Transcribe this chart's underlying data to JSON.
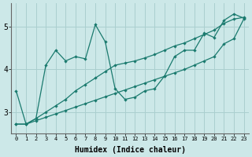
{
  "xlabel": "Humidex (Indice chaleur)",
  "bg_color": "#cce8e8",
  "grid_color": "#aacfcf",
  "line_color": "#1a7a6e",
  "xlim": [
    -0.5,
    23.5
  ],
  "ylim": [
    2.5,
    5.55
  ],
  "x_ticks": [
    0,
    1,
    2,
    3,
    4,
    5,
    6,
    7,
    8,
    9,
    10,
    11,
    12,
    13,
    14,
    15,
    16,
    17,
    18,
    19,
    20,
    21,
    22,
    23
  ],
  "y_ticks": [
    3,
    4,
    5
  ],
  "hours": [
    0,
    1,
    2,
    3,
    4,
    5,
    6,
    7,
    8,
    9,
    10,
    11,
    12,
    13,
    14,
    15,
    16,
    17,
    18,
    19,
    20,
    21,
    22,
    23
  ],
  "jagged_line": [
    3.5,
    2.72,
    2.85,
    4.1,
    4.45,
    4.2,
    4.3,
    4.25,
    5.05,
    4.65,
    3.55,
    3.3,
    3.35,
    3.5,
    3.55,
    3.85,
    4.3,
    4.45,
    4.45,
    4.85,
    4.75,
    5.15,
    5.3,
    5.2
  ],
  "line_lower": [
    2.72,
    2.72,
    2.8,
    2.88,
    2.96,
    3.04,
    3.12,
    3.2,
    3.28,
    3.36,
    3.44,
    3.52,
    3.6,
    3.68,
    3.76,
    3.84,
    3.92,
    4.0,
    4.1,
    4.2,
    4.3,
    4.6,
    4.72,
    5.18
  ],
  "line_upper": [
    2.72,
    2.72,
    2.85,
    3.0,
    3.15,
    3.3,
    3.5,
    3.65,
    3.8,
    3.95,
    4.1,
    4.15,
    4.2,
    4.27,
    4.35,
    4.45,
    4.55,
    4.62,
    4.72,
    4.82,
    4.92,
    5.08,
    5.18,
    5.22
  ]
}
